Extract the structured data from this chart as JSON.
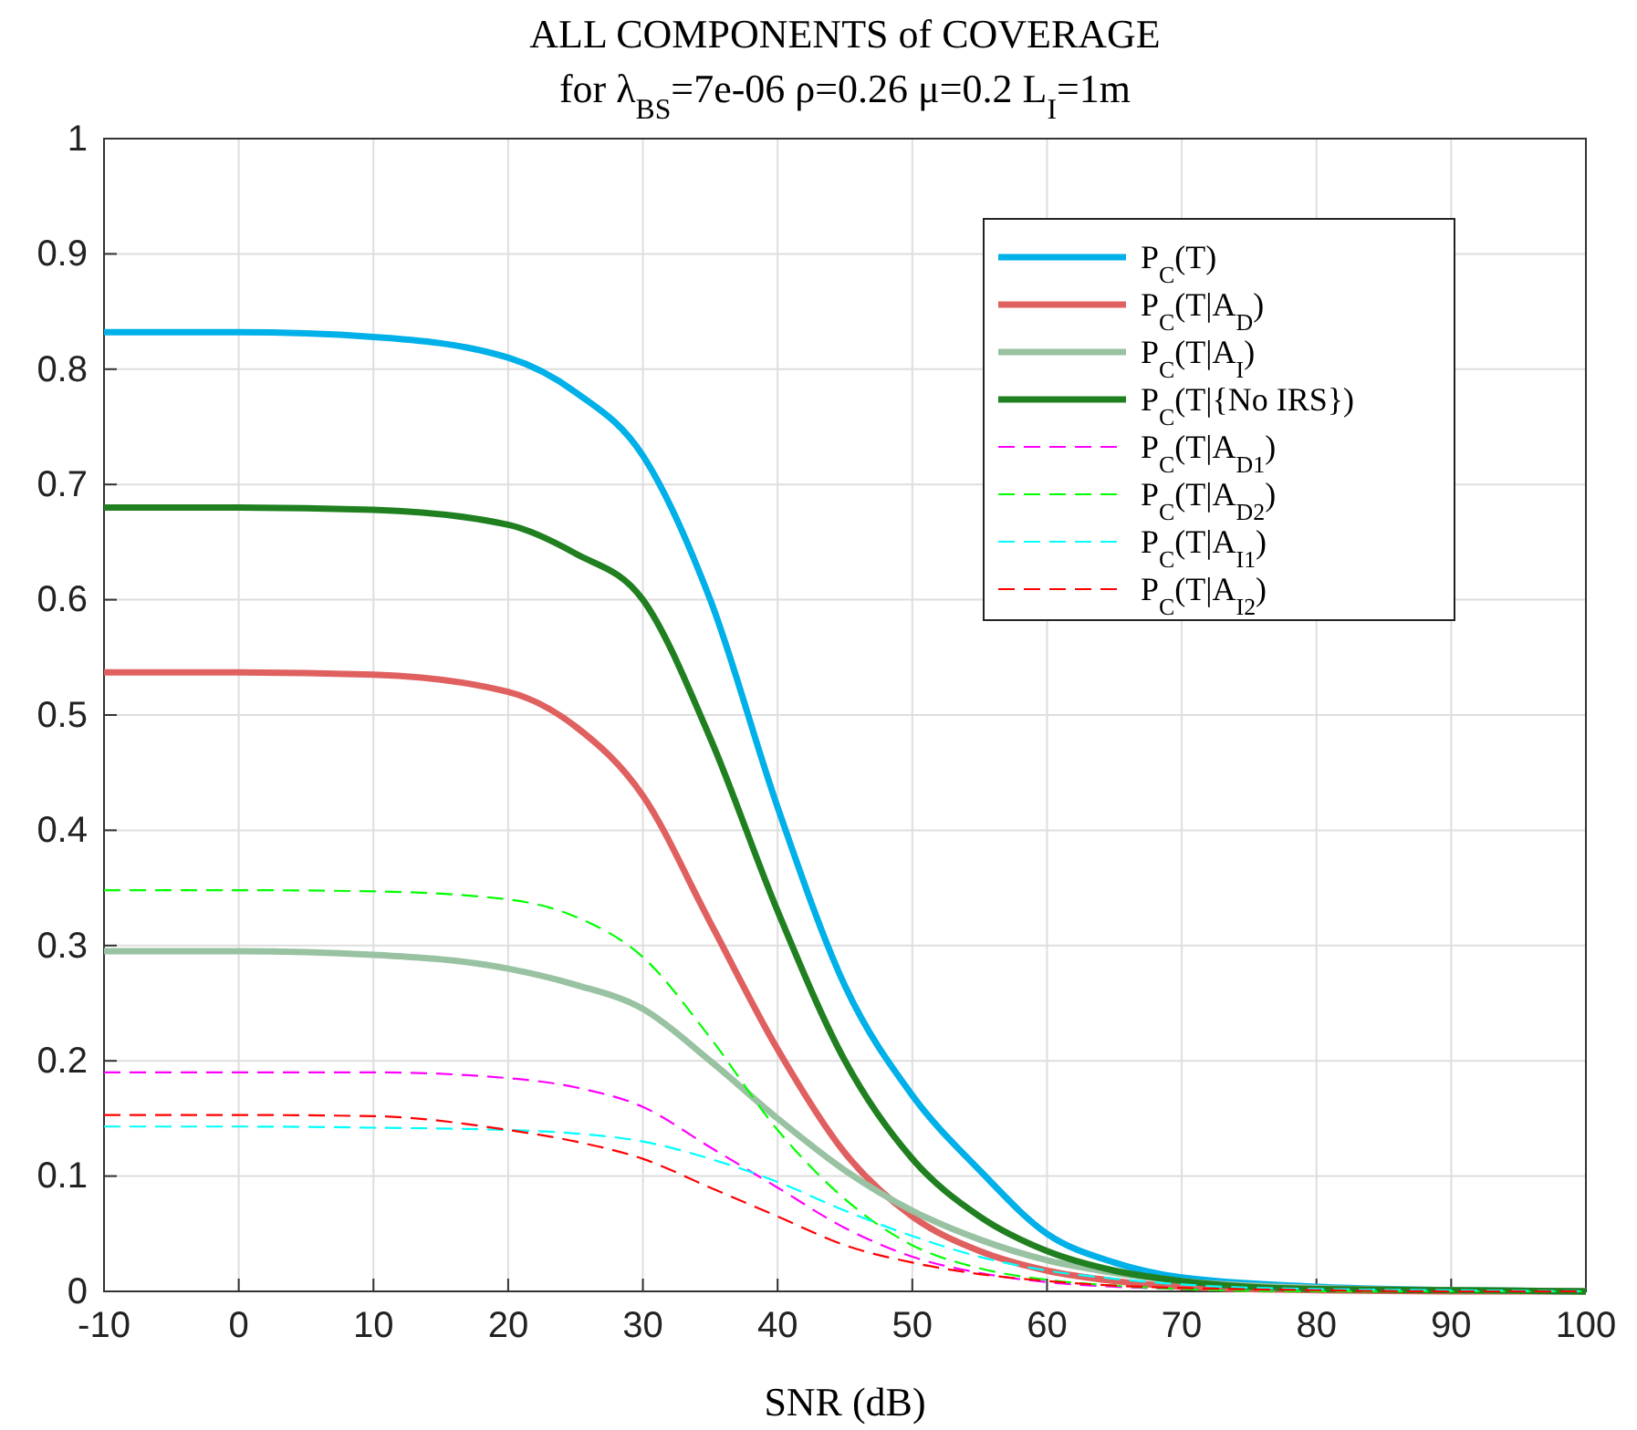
{
  "chart_data": {
    "type": "line",
    "title": "ALL COMPONENTS of COVERAGE",
    "subtitle": "for λ$_{BS}$=7e-06 ρ=0.26 μ=0.2 L$_{I}$=1m",
    "xlabel": "SNR (dB)",
    "x": [
      -10,
      0,
      10,
      20,
      25,
      30,
      35,
      40,
      45,
      50,
      55,
      60,
      65,
      70,
      80,
      90,
      100
    ],
    "series": [
      {
        "name": "P$_{C}$(T)",
        "color": "#00b0e8",
        "line_style": "solid",
        "values": [
          0.832,
          0.832,
          0.828,
          0.81,
          0.78,
          0.725,
          0.6,
          0.42,
          0.265,
          0.17,
          0.105,
          0.05,
          0.025,
          0.012,
          0.004,
          0.001,
          0
        ]
      },
      {
        "name": "P$_{C}$(T|A$_{D}$)",
        "color": "#e06060",
        "line_style": "solid",
        "values": [
          0.537,
          0.537,
          0.535,
          0.52,
          0.49,
          0.43,
          0.32,
          0.21,
          0.12,
          0.065,
          0.035,
          0.018,
          0.009,
          0.004,
          0.001,
          0,
          0
        ]
      },
      {
        "name": "P$_{C}$(T|A$_{I}$)",
        "color": "#99c2a2",
        "line_style": "solid",
        "values": [
          0.295,
          0.295,
          0.292,
          0.28,
          0.266,
          0.245,
          0.2,
          0.15,
          0.105,
          0.07,
          0.045,
          0.027,
          0.016,
          0.009,
          0.003,
          0.001,
          0
        ]
      },
      {
        "name": "P$_{C}$(T|{No IRS})",
        "color": "#208020",
        "line_style": "solid",
        "values": [
          0.68,
          0.68,
          0.678,
          0.665,
          0.64,
          0.6,
          0.48,
          0.33,
          0.2,
          0.115,
          0.065,
          0.035,
          0.018,
          0.009,
          0.002,
          0.001,
          0
        ]
      },
      {
        "name": "P$_{C}$(T|A$_{D1}$)",
        "color": "#ff00ff",
        "line_style": "dashed",
        "values": [
          0.19,
          0.19,
          0.19,
          0.185,
          0.177,
          0.16,
          0.125,
          0.09,
          0.055,
          0.03,
          0.016,
          0.008,
          0.004,
          0.002,
          0,
          null,
          null
        ]
      },
      {
        "name": "P$_{C}$(T|A$_{D2}$)",
        "color": "#00ff00",
        "line_style": "dashed",
        "values": [
          0.348,
          0.348,
          0.347,
          0.34,
          0.325,
          0.29,
          0.22,
          0.14,
          0.08,
          0.04,
          0.02,
          0.01,
          0.005,
          0.002,
          0,
          0,
          0
        ]
      },
      {
        "name": "P$_{C}$(T|A$_{I1}$)",
        "color": "#00ffff",
        "line_style": "dashed",
        "values": [
          0.143,
          0.143,
          0.142,
          0.14,
          0.137,
          0.13,
          0.115,
          0.095,
          0.07,
          0.048,
          0.03,
          0.018,
          0.011,
          0.006,
          0.002,
          0.001,
          0
        ]
      },
      {
        "name": "P$_{C}$(T|A$_{I2}$)",
        "color": "#ff0000",
        "line_style": "dashed",
        "values": [
          0.153,
          0.153,
          0.152,
          0.14,
          0.13,
          0.115,
          0.09,
          0.065,
          0.04,
          0.025,
          0.015,
          0.009,
          0.005,
          0.003,
          0.001,
          0,
          0
        ]
      }
    ],
    "xlim": [
      -10,
      100
    ],
    "xticks": [
      -10,
      0,
      10,
      20,
      30,
      40,
      50,
      60,
      70,
      80,
      90,
      100
    ],
    "ylim": [
      0,
      1
    ],
    "yticks": [
      0,
      0.1,
      0.2,
      0.3,
      0.4,
      0.5,
      0.6,
      0.7,
      0.8,
      0.9,
      1
    ],
    "grid": true,
    "legend": "top right"
  }
}
